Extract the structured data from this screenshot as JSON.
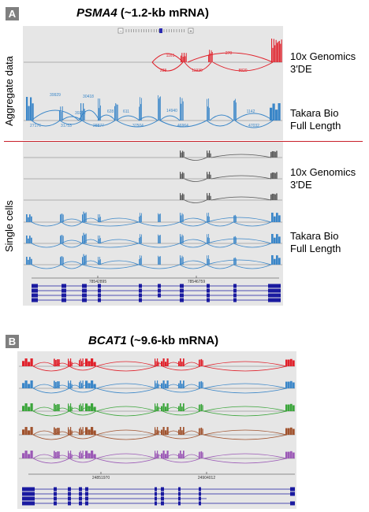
{
  "panelA": {
    "letter": "A",
    "gene": "PSMA4",
    "subtitle": " (~1.2-kb mRNA)",
    "left_top": "Aggregate data",
    "left_bottom": "Single cells",
    "labels": [
      "10x Genomics\n3′DE",
      "Takara Bio\nFull Length",
      "10x Genomics\n3′DE",
      "Takara Bio\nFull Length"
    ],
    "red_counts": [
      "1161",
      "270",
      "288",
      "11939",
      "8820"
    ],
    "blue_counts": [
      "39929",
      "30418",
      "27176",
      "31753",
      "39292",
      "628",
      "611",
      "14940",
      "1142",
      "28877",
      "37504",
      "46964",
      "47032"
    ],
    "coord1": "78542895",
    "coord2": "78546759"
  },
  "panelB": {
    "letter": "B",
    "gene": "BCAT1",
    "subtitle": " (~9.6-kb mRNA)",
    "coord1": "24851970",
    "coord2": "24904012"
  },
  "colors": {
    "red": "#e0202a",
    "blue": "#3a86c8",
    "dark": "#555555",
    "green": "#3aa53a",
    "brown": "#a0522d",
    "purple": "#9b59b6",
    "navy": "#1a1aa0"
  }
}
